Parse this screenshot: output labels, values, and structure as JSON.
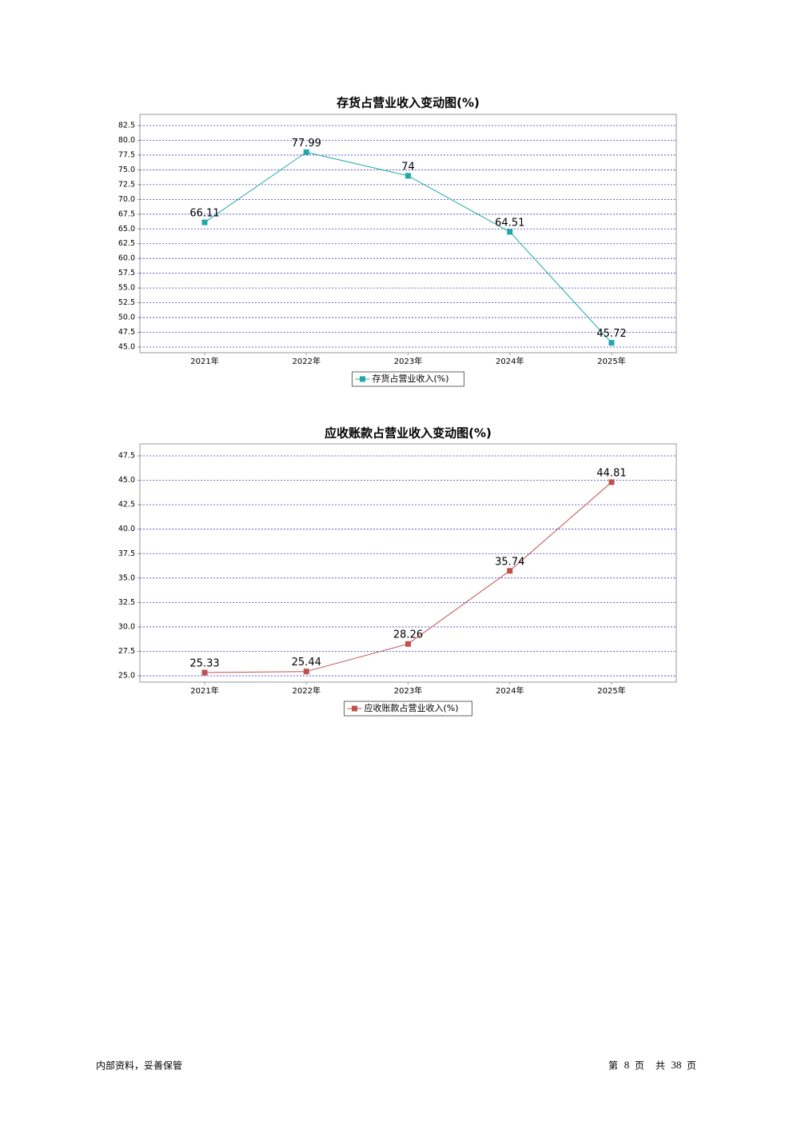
{
  "chart_data": [
    {
      "type": "line",
      "title": "存货占营业收入变动图(%)",
      "categories": [
        "2021年",
        "2022年",
        "2023年",
        "2024年",
        "2025年"
      ],
      "series": [
        {
          "name": "存货占营业收入(%)",
          "color": "#20a8a8",
          "values": [
            66.11,
            77.99,
            74,
            64.51,
            45.72
          ]
        }
      ],
      "ylim": [
        44.05,
        84.4
      ],
      "yticks": [
        {
          "value": 45,
          "label": "45.0"
        },
        47.5,
        {
          "value": 50,
          "label": "50.0"
        },
        52.5,
        {
          "value": 55,
          "label": "55.0"
        },
        57.5,
        {
          "value": 60,
          "label": "60.0"
        },
        62.5,
        {
          "value": 65,
          "label": "65.0"
        },
        67.5,
        {
          "value": 70,
          "label": "70.0"
        },
        72.5,
        {
          "value": 75,
          "label": "75.0"
        },
        77.5,
        {
          "value": 80,
          "label": "80.0"
        },
        82.5
      ],
      "grid": true
    },
    {
      "type": "line",
      "title": "应收账款占营业收入变动图(%)",
      "categories": [
        "2021年",
        "2022年",
        "2023年",
        "2024年",
        "2025年"
      ],
      "series": [
        {
          "name": "应收账款占营业收入(%)",
          "color": "#c0504d",
          "values": [
            25.33,
            25.44,
            28.26,
            35.74,
            44.81
          ]
        }
      ],
      "ylim": [
        24.35,
        48.73
      ],
      "yticks": [
        {
          "value": 25,
          "label": "25.0"
        },
        27.5,
        {
          "value": 30,
          "label": "30.0"
        },
        32.5,
        {
          "value": 35,
          "label": "35.0"
        },
        37.5,
        {
          "value": 40,
          "label": "40.0"
        },
        42.5,
        {
          "value": 45,
          "label": "45.0"
        },
        47.5
      ],
      "grid": true
    }
  ],
  "footer": {
    "left": "内部资料，妥善保管",
    "page_prefix": "第",
    "page": 8,
    "page_suffix": "页",
    "total_prefix": "共",
    "total": 38,
    "total_suffix": "页"
  }
}
